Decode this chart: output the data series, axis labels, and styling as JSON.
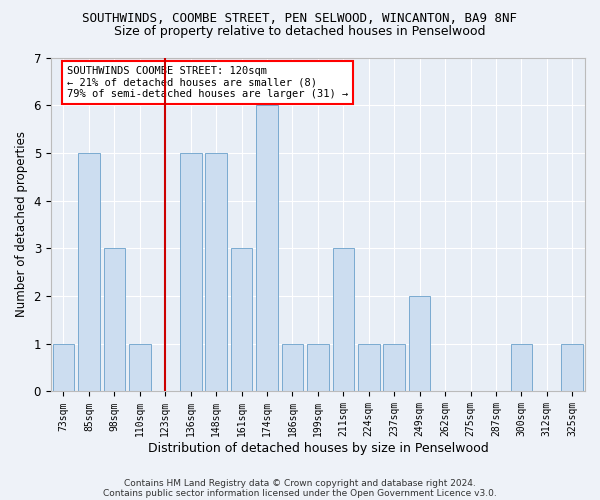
{
  "title1": "SOUTHWINDS, COOMBE STREET, PEN SELWOOD, WINCANTON, BA9 8NF",
  "title2": "Size of property relative to detached houses in Penselwood",
  "xlabel": "Distribution of detached houses by size in Penselwood",
  "ylabel": "Number of detached properties",
  "categories": [
    "73sqm",
    "85sqm",
    "98sqm",
    "110sqm",
    "123sqm",
    "136sqm",
    "148sqm",
    "161sqm",
    "174sqm",
    "186sqm",
    "199sqm",
    "211sqm",
    "224sqm",
    "237sqm",
    "249sqm",
    "262sqm",
    "275sqm",
    "287sqm",
    "300sqm",
    "312sqm",
    "325sqm"
  ],
  "values": [
    1,
    5,
    3,
    1,
    0,
    5,
    5,
    3,
    6,
    1,
    1,
    3,
    1,
    1,
    2,
    0,
    0,
    0,
    1,
    0,
    1
  ],
  "bar_color": "#ccddf0",
  "bar_edge_color": "#7aaad0",
  "highlight_index": 4,
  "highlight_color": "#cc0000",
  "ylim": [
    0,
    7
  ],
  "yticks": [
    0,
    1,
    2,
    3,
    4,
    5,
    6,
    7
  ],
  "annotation_text": "SOUTHWINDS COOMBE STREET: 120sqm\n← 21% of detached houses are smaller (8)\n79% of semi-detached houses are larger (31) →",
  "footnote1": "Contains HM Land Registry data © Crown copyright and database right 2024.",
  "footnote2": "Contains public sector information licensed under the Open Government Licence v3.0.",
  "background_color": "#eef2f8",
  "plot_bg_color": "#e8eef6",
  "grid_color": "#ffffff",
  "title1_fontsize": 9,
  "title2_fontsize": 9,
  "xlabel_fontsize": 9,
  "ylabel_fontsize": 8.5,
  "footnote_fontsize": 6.5
}
